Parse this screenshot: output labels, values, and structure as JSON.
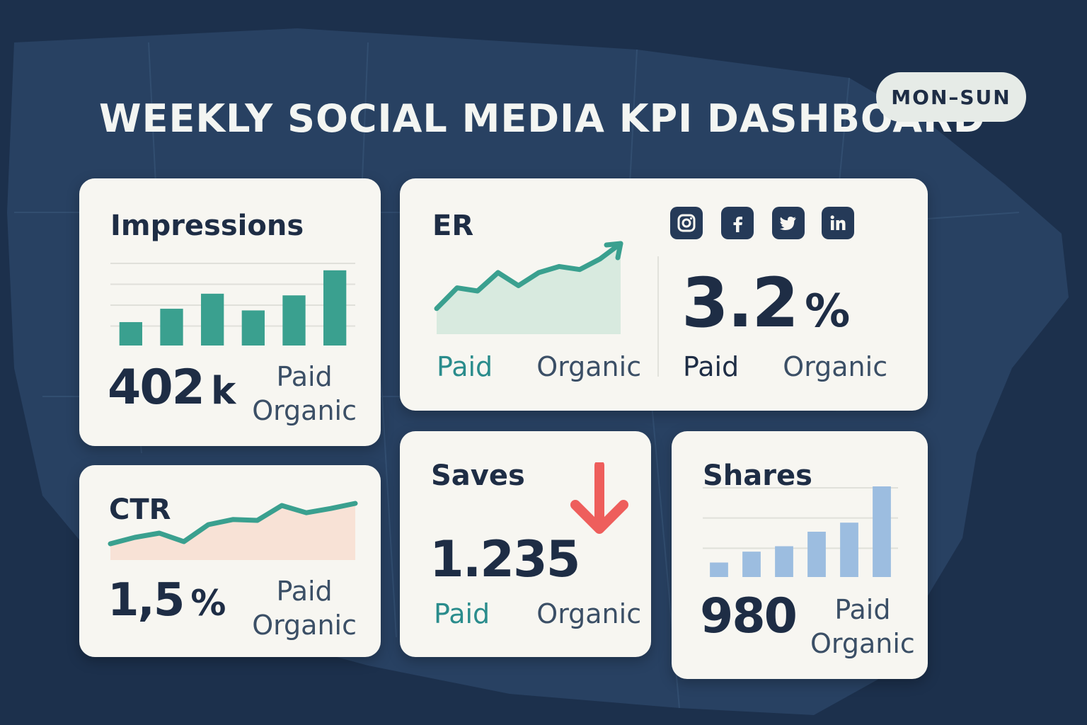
{
  "header": {
    "title": "WEEKLY SOCIAL MEDIA KPI DASHBOARD",
    "date_range": "MON–SUN"
  },
  "colors": {
    "background": "#1f3552",
    "card": "#f7f6f1",
    "teal": "#3aa08f",
    "area_green": "#d8eadf",
    "area_peach": "#f8e2d6",
    "arrow_red": "#ee5e5c",
    "bar_blue": "#9cbde0",
    "text_dark": "#1e2d45"
  },
  "impressions": {
    "title": "Impressions",
    "value": "402",
    "unit": "k",
    "legend_paid": "Paid",
    "legend_organic": "Organic",
    "bars": [
      0.28,
      0.44,
      0.62,
      0.42,
      0.6,
      0.9
    ]
  },
  "er": {
    "title": "ER",
    "value": "3.2",
    "unit": "%",
    "legend_paid": "Paid",
    "legend_organic": "Organic",
    "legend_paid_right": "Paid",
    "legend_organic_right": "Organic",
    "trend": [
      0.15,
      0.42,
      0.38,
      0.62,
      0.45,
      0.62,
      0.7,
      0.66,
      0.8,
      1.0
    ],
    "social_icons": [
      "instagram-icon",
      "facebook-icon",
      "twitter-icon",
      "linkedin-icon"
    ]
  },
  "ctr": {
    "title": "CTR",
    "value": "1,5",
    "unit": "%",
    "legend_paid": "Paid",
    "legend_organic": "Organic",
    "trend": [
      0.05,
      0.2,
      0.3,
      0.1,
      0.5,
      0.62,
      0.6,
      0.95,
      0.78,
      0.88,
      1.0
    ]
  },
  "saves": {
    "title": "Saves",
    "value": "1.235",
    "legend_paid": "Paid",
    "legend_organic": "Organic",
    "trend_direction": "down"
  },
  "shares": {
    "title": "Shares",
    "value": "980",
    "legend_paid": "Paid",
    "legend_organic": "Organic",
    "bars": [
      0.16,
      0.28,
      0.34,
      0.5,
      0.6,
      1.0
    ]
  }
}
